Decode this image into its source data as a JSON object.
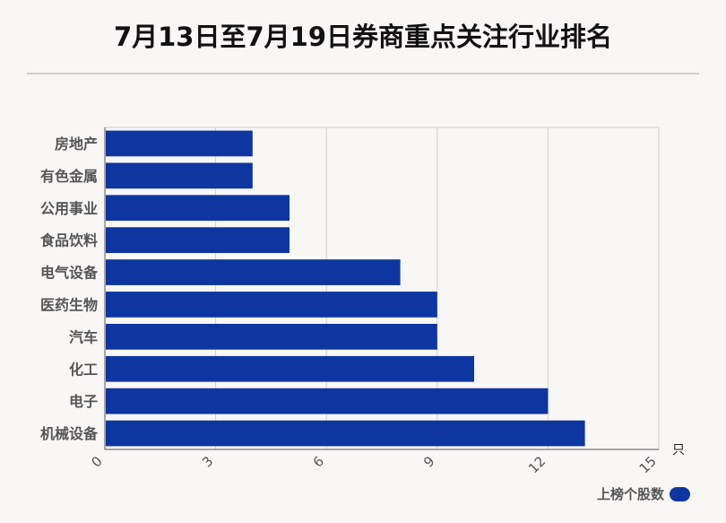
{
  "title": "7月13日至7月19日券商重点关注行业排名",
  "chart_data": {
    "type": "bar",
    "orientation": "horizontal",
    "categories": [
      "房地产",
      "有色金属",
      "公用事业",
      "食品饮料",
      "电气设备",
      "医药生物",
      "汽车",
      "化工",
      "电子",
      "机械设备"
    ],
    "series": [
      {
        "name": "上榜个股数",
        "values": [
          4,
          4,
          5,
          5,
          8,
          9,
          9,
          10,
          12,
          13
        ]
      }
    ],
    "xlim": [
      0,
      15
    ],
    "xticks": [
      "0",
      "3",
      "6",
      "9",
      "12",
      "15"
    ],
    "xunit": "只",
    "bar_color": "#0e36a0",
    "grid": true,
    "legend_position": "bottom-right"
  }
}
